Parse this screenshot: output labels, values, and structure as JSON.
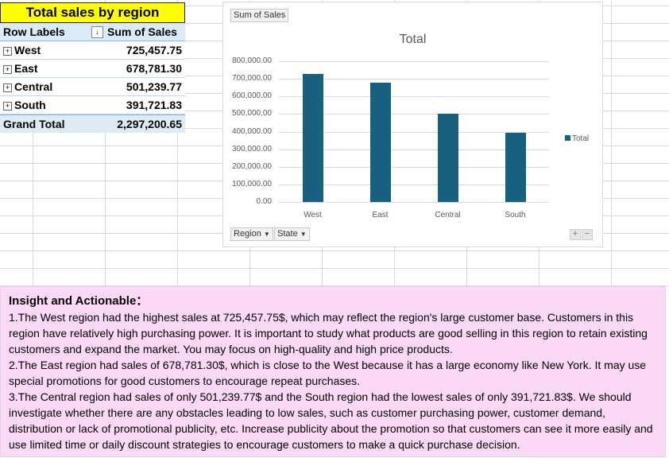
{
  "pivot": {
    "title": "Total sales by region",
    "header": {
      "row_labels": "Row Labels",
      "sum_label": "Sum of Sales",
      "filter_glyph": "↓"
    },
    "rows": [
      {
        "label": "West",
        "value": "725,457.75"
      },
      {
        "label": "East",
        "value": "678,781.30"
      },
      {
        "label": "Central",
        "value": "501,239.77"
      },
      {
        "label": "South",
        "value": "391,721.83"
      }
    ],
    "grand_total": {
      "label": "Grand Total",
      "value": "2,297,200.65"
    },
    "expand_glyph": "+"
  },
  "chart": {
    "value_button": "Sum of Sales",
    "axis_buttons": [
      {
        "label": "Region",
        "arrow": "▼"
      },
      {
        "label": "State",
        "arrow": "▼"
      }
    ],
    "zoom": {
      "plus": "+",
      "minus": "−"
    },
    "colors": {
      "bar": "#17607f"
    }
  },
  "chart_data": {
    "type": "bar",
    "title": "Total",
    "categories": [
      "West",
      "East",
      "Central",
      "South"
    ],
    "series": [
      {
        "name": "Total",
        "values": [
          725457.75,
          678781.3,
          501239.77,
          391721.83
        ]
      }
    ],
    "ylim": [
      0,
      800000
    ],
    "yticks": [
      "0.00",
      "100,000.00",
      "200,000.00",
      "300,000.00",
      "400,000.00",
      "500,000.00",
      "600,000.00",
      "700,000.00",
      "800,000.00"
    ],
    "grid": true,
    "legend": "right"
  },
  "insight": {
    "heading": "Insight and Actionable：",
    "paragraphs": [
      "1.The West region had the highest sales at 725,457.75$, which may reflect the region's large customer base. Customers in this region have relatively high purchasing power. It is important to study what products are good selling in this region to retain existing customers and expand the market. You may focus on high-quality and high price products.",
      "2.The East region had sales of 678,781.30$, which is close to the West because it has a large economy like New York. It may use special promotions for good customers to encourage repeat purchases.",
      "3.The Central region had sales of only 501,239.77$ and the South region had the lowest sales of only 391,721.83$. We should investigate whether there are any obstacles leading to low sales, such as customer purchasing power, customer demand, distribution or lack of promotional publicity, etc. Increase publicity about the promotion so that customers can see it more easily and use limited time or daily discount strategies to encourage customers to make a quick purchase decision."
    ]
  }
}
